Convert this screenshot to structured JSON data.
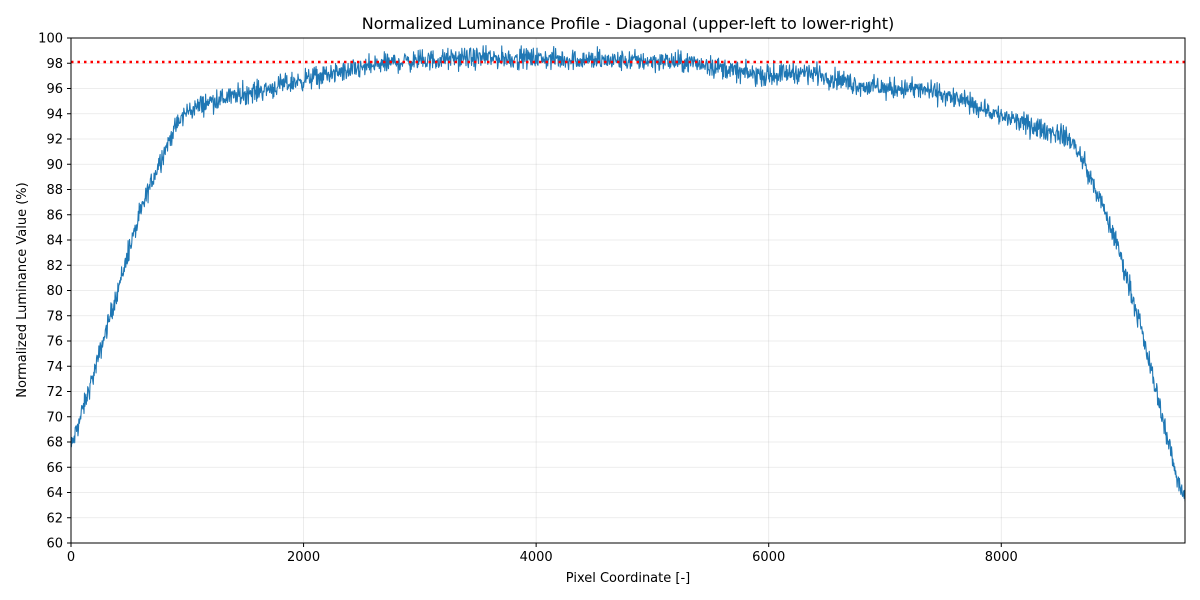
{
  "chart_data": {
    "type": "line",
    "title": "Normalized Luminance Profile - Diagonal (upper-left to lower-right)",
    "xlabel": "Pixel Coordinate [-]",
    "ylabel": "Normalized Luminance Value (%)",
    "xlim": [
      0,
      9580
    ],
    "ylim": [
      60,
      100
    ],
    "x_ticks": [
      0,
      2000,
      4000,
      6000,
      8000
    ],
    "y_ticks": [
      60,
      62,
      64,
      66,
      68,
      70,
      72,
      74,
      76,
      78,
      80,
      82,
      84,
      86,
      88,
      90,
      92,
      94,
      96,
      98,
      100
    ],
    "grid": true,
    "legend": "none",
    "series": [
      {
        "color": "#1f77b4",
        "style": "solid",
        "noise_amplitude": 0.7,
        "x": [
          0,
          100,
          200,
          300,
          400,
          500,
          600,
          700,
          800,
          900,
          1000,
          1200,
          1400,
          1600,
          1800,
          2000,
          2200,
          2400,
          2600,
          2800,
          3000,
          3200,
          3400,
          3600,
          3800,
          4000,
          4200,
          4400,
          4600,
          4800,
          5000,
          5200,
          5400,
          5600,
          5800,
          6000,
          6200,
          6400,
          6600,
          6800,
          7000,
          7200,
          7400,
          7600,
          7800,
          8000,
          8200,
          8400,
          8500,
          8600,
          8700,
          8800,
          8900,
          9000,
          9100,
          9200,
          9300,
          9400,
          9500,
          9580
        ],
        "values": [
          67.5,
          70.5,
          73.5,
          76.8,
          80.0,
          83.2,
          86.2,
          88.8,
          91.0,
          93.0,
          94.2,
          95.0,
          95.4,
          95.8,
          96.2,
          96.7,
          97.1,
          97.4,
          97.8,
          98.1,
          98.2,
          98.3,
          98.4,
          98.4,
          98.4,
          98.4,
          98.3,
          98.3,
          98.2,
          98.2,
          98.2,
          98.1,
          98.0,
          97.6,
          97.2,
          97.0,
          97.3,
          97.2,
          96.7,
          96.2,
          96.0,
          96.0,
          95.8,
          95.2,
          94.6,
          93.8,
          93.2,
          92.6,
          92.4,
          91.9,
          90.3,
          88.2,
          86.0,
          83.5,
          80.5,
          77.0,
          73.3,
          69.5,
          65.5,
          63.5
        ]
      },
      {
        "color": "#ff0000",
        "style": "dotted",
        "x": [
          0,
          9580
        ],
        "values": [
          98.1,
          98.1
        ]
      }
    ]
  }
}
